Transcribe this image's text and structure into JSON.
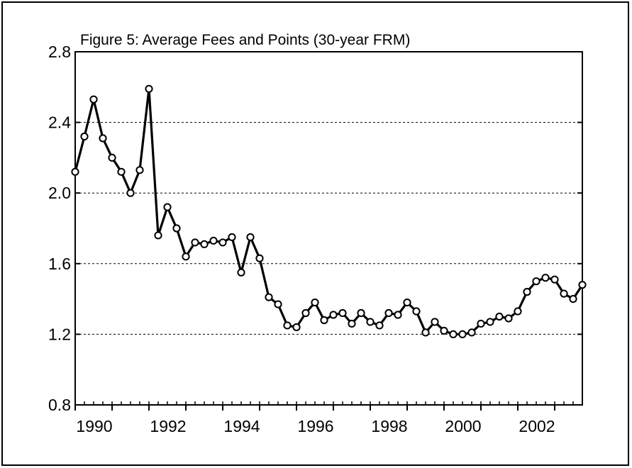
{
  "chart_data": {
    "type": "line",
    "title": "Figure 5: Average Fees and Points (30-year FRM)",
    "xlabel": "",
    "ylabel": "",
    "xlim": [
      1990.0,
      2003.75
    ],
    "ylim": [
      0.8,
      2.8
    ],
    "yticks": [
      0.8,
      1.2,
      1.6,
      2.0,
      2.4,
      2.8
    ],
    "ytick_labels": [
      "0.8",
      "1.2",
      "1.6",
      "2.0",
      "2.4",
      "2.8"
    ],
    "xticks": [
      1990,
      1992,
      1994,
      1996,
      1998,
      2000,
      2002
    ],
    "xtick_labels": [
      "1990",
      "1992",
      "1994",
      "1996",
      "1998",
      "2000",
      "2002"
    ],
    "grid": "horizontal-dashed",
    "legend": "none",
    "series": [
      {
        "marker": "circle-open",
        "color": "#000000",
        "x": [
          1990.0,
          1990.25,
          1990.5,
          1990.75,
          1991.0,
          1991.25,
          1991.5,
          1991.75,
          1992.0,
          1992.25,
          1992.5,
          1992.75,
          1993.0,
          1993.25,
          1993.5,
          1993.75,
          1994.0,
          1994.25,
          1994.5,
          1994.75,
          1995.0,
          1995.25,
          1995.5,
          1995.75,
          1996.0,
          1996.25,
          1996.5,
          1996.75,
          1997.0,
          1997.25,
          1997.5,
          1997.75,
          1998.0,
          1998.25,
          1998.5,
          1998.75,
          1999.0,
          1999.25,
          1999.5,
          1999.75,
          2000.0,
          2000.25,
          2000.5,
          2000.75,
          2001.0,
          2001.25,
          2001.5,
          2001.75,
          2002.0,
          2002.25,
          2002.5,
          2002.75,
          2003.0,
          2003.25,
          2003.5,
          2003.75
        ],
        "y": [
          2.12,
          2.32,
          2.53,
          2.31,
          2.2,
          2.12,
          2.0,
          2.13,
          2.59,
          1.76,
          1.92,
          1.8,
          1.64,
          1.72,
          1.71,
          1.73,
          1.72,
          1.75,
          1.55,
          1.75,
          1.63,
          1.41,
          1.37,
          1.25,
          1.24,
          1.32,
          1.38,
          1.28,
          1.31,
          1.32,
          1.26,
          1.32,
          1.27,
          1.25,
          1.32,
          1.31,
          1.38,
          1.33,
          1.21,
          1.27,
          1.22,
          1.2,
          1.2,
          1.21,
          1.26,
          1.27,
          1.3,
          1.29,
          1.33,
          1.44,
          1.5,
          1.52,
          1.51,
          1.43,
          1.4,
          1.48
        ]
      }
    ]
  }
}
